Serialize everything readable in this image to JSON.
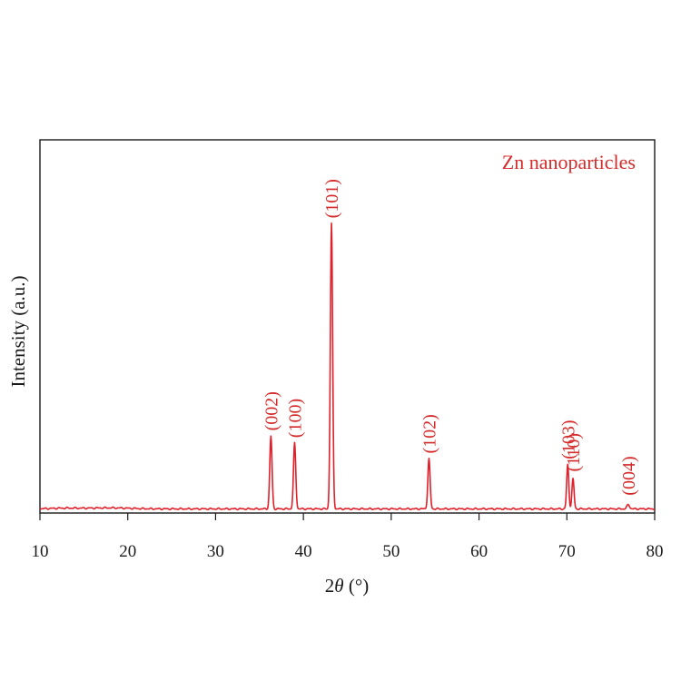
{
  "chart_data": {
    "type": "line",
    "xlabel_prefix": "2",
    "xlabel_symbol": "θ",
    "xlabel_unit": " (°)",
    "ylabel": "Intensity (a.u.)",
    "xlim": [
      10,
      80
    ],
    "ylim": [
      0,
      100
    ],
    "x_ticks": [
      10,
      20,
      30,
      40,
      50,
      60,
      70,
      80
    ],
    "grid": false,
    "legend_position": "top-right",
    "line_color": "#e0202a",
    "label_color": "#d42a2a",
    "series": [
      {
        "name": "Zn nanoparticles",
        "baseline": 0.5,
        "peaks": [
          {
            "position": 36.3,
            "height": 25.5,
            "width": 0.13,
            "label": "(002)"
          },
          {
            "position": 39.0,
            "height": 23.0,
            "width": 0.13,
            "label": "(100)"
          },
          {
            "position": 43.2,
            "height": 100.0,
            "width": 0.13,
            "label": "(101)"
          },
          {
            "position": 54.3,
            "height": 17.5,
            "width": 0.13,
            "label": "(102)"
          },
          {
            "position": 70.1,
            "height": 15.5,
            "width": 0.12,
            "label": "(103)"
          },
          {
            "position": 70.7,
            "height": 10.5,
            "width": 0.12,
            "label": "(110)"
          },
          {
            "position": 77.0,
            "height": 1.5,
            "width": 0.15,
            "label": "(004)"
          }
        ]
      }
    ]
  }
}
